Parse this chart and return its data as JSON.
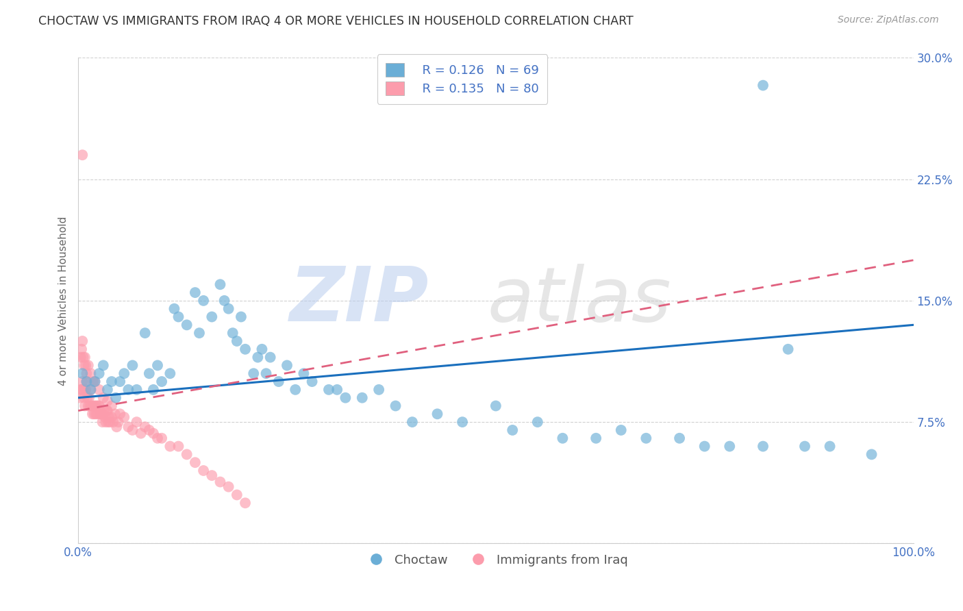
{
  "title": "CHOCTAW VS IMMIGRANTS FROM IRAQ 4 OR MORE VEHICLES IN HOUSEHOLD CORRELATION CHART",
  "source": "Source: ZipAtlas.com",
  "ylabel": "4 or more Vehicles in Household",
  "xlim": [
    0,
    1.0
  ],
  "ylim": [
    0,
    0.3
  ],
  "xticks": [
    0.0,
    0.2,
    0.4,
    0.6,
    0.8,
    1.0
  ],
  "xticklabels": [
    "0.0%",
    "",
    "",
    "",
    "",
    "100.0%"
  ],
  "yticks": [
    0.0,
    0.075,
    0.15,
    0.225,
    0.3
  ],
  "yticklabels": [
    "",
    "7.5%",
    "15.0%",
    "22.5%",
    "30.0%"
  ],
  "legend_R_blue": "R = 0.126",
  "legend_N_blue": "N = 69",
  "legend_R_pink": "R = 0.135",
  "legend_N_pink": "N = 80",
  "blue_color": "#6baed6",
  "pink_color": "#fc9cac",
  "blue_line_color": "#1a6fbd",
  "pink_line_color": "#e0607e",
  "background_color": "#ffffff",
  "grid_color": "#cccccc",
  "label_color": "#4472c4",
  "blue_scatter_x": [
    0.005,
    0.01,
    0.015,
    0.02,
    0.025,
    0.03,
    0.035,
    0.04,
    0.045,
    0.05,
    0.055,
    0.06,
    0.065,
    0.07,
    0.08,
    0.085,
    0.09,
    0.095,
    0.1,
    0.11,
    0.115,
    0.12,
    0.13,
    0.14,
    0.145,
    0.15,
    0.16,
    0.17,
    0.175,
    0.18,
    0.185,
    0.19,
    0.195,
    0.2,
    0.21,
    0.215,
    0.22,
    0.225,
    0.23,
    0.24,
    0.25,
    0.26,
    0.27,
    0.28,
    0.3,
    0.31,
    0.32,
    0.34,
    0.36,
    0.38,
    0.4,
    0.43,
    0.46,
    0.5,
    0.52,
    0.55,
    0.58,
    0.62,
    0.65,
    0.68,
    0.72,
    0.75,
    0.78,
    0.82,
    0.85,
    0.87,
    0.9,
    0.95,
    0.82
  ],
  "blue_scatter_y": [
    0.105,
    0.1,
    0.095,
    0.1,
    0.105,
    0.11,
    0.095,
    0.1,
    0.09,
    0.1,
    0.105,
    0.095,
    0.11,
    0.095,
    0.13,
    0.105,
    0.095,
    0.11,
    0.1,
    0.105,
    0.145,
    0.14,
    0.135,
    0.155,
    0.13,
    0.15,
    0.14,
    0.16,
    0.15,
    0.145,
    0.13,
    0.125,
    0.14,
    0.12,
    0.105,
    0.115,
    0.12,
    0.105,
    0.115,
    0.1,
    0.11,
    0.095,
    0.105,
    0.1,
    0.095,
    0.095,
    0.09,
    0.09,
    0.095,
    0.085,
    0.075,
    0.08,
    0.075,
    0.085,
    0.07,
    0.075,
    0.065,
    0.065,
    0.07,
    0.065,
    0.065,
    0.06,
    0.06,
    0.06,
    0.12,
    0.06,
    0.06,
    0.055,
    0.283
  ],
  "pink_scatter_x": [
    0.002,
    0.003,
    0.004,
    0.005,
    0.006,
    0.007,
    0.008,
    0.009,
    0.01,
    0.011,
    0.012,
    0.013,
    0.014,
    0.015,
    0.016,
    0.017,
    0.018,
    0.019,
    0.02,
    0.021,
    0.022,
    0.023,
    0.024,
    0.025,
    0.026,
    0.027,
    0.028,
    0.029,
    0.03,
    0.031,
    0.032,
    0.033,
    0.034,
    0.035,
    0.036,
    0.037,
    0.038,
    0.04,
    0.042,
    0.044,
    0.046,
    0.048,
    0.05,
    0.055,
    0.06,
    0.065,
    0.07,
    0.075,
    0.08,
    0.085,
    0.09,
    0.095,
    0.1,
    0.11,
    0.12,
    0.13,
    0.14,
    0.15,
    0.16,
    0.17,
    0.18,
    0.19,
    0.2,
    0.003,
    0.004,
    0.005,
    0.006,
    0.007,
    0.008,
    0.009,
    0.01,
    0.012,
    0.015,
    0.018,
    0.02,
    0.025,
    0.03,
    0.035,
    0.04,
    0.005
  ],
  "pink_scatter_y": [
    0.09,
    0.095,
    0.095,
    0.1,
    0.095,
    0.09,
    0.085,
    0.095,
    0.1,
    0.09,
    0.085,
    0.09,
    0.085,
    0.095,
    0.085,
    0.08,
    0.085,
    0.08,
    0.085,
    0.08,
    0.085,
    0.08,
    0.085,
    0.085,
    0.08,
    0.08,
    0.08,
    0.075,
    0.08,
    0.082,
    0.078,
    0.075,
    0.082,
    0.082,
    0.075,
    0.078,
    0.075,
    0.078,
    0.075,
    0.08,
    0.072,
    0.075,
    0.08,
    0.078,
    0.072,
    0.07,
    0.075,
    0.068,
    0.072,
    0.07,
    0.068,
    0.065,
    0.065,
    0.06,
    0.06,
    0.055,
    0.05,
    0.045,
    0.042,
    0.038,
    0.035,
    0.03,
    0.025,
    0.115,
    0.12,
    0.125,
    0.115,
    0.11,
    0.115,
    0.11,
    0.105,
    0.11,
    0.105,
    0.1,
    0.1,
    0.095,
    0.09,
    0.088,
    0.085,
    0.24
  ],
  "blue_trend_x": [
    0.0,
    1.0
  ],
  "blue_trend_y": [
    0.09,
    0.135
  ],
  "pink_trend_x": [
    0.0,
    1.0
  ],
  "pink_trend_y": [
    0.082,
    0.175
  ]
}
